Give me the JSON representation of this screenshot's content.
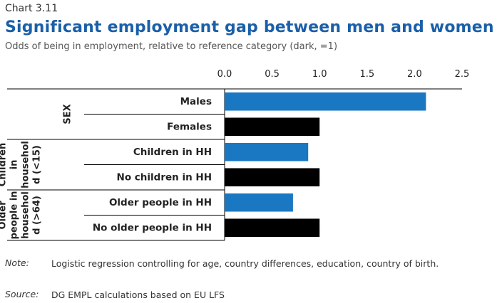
{
  "header": {
    "chart_label": "Chart 3.11",
    "title": "Significant employment gap between men and women",
    "subtitle": "Odds of being in employment, relative to reference category (dark, =1)"
  },
  "footer": {
    "note_label": "Note:",
    "note_text": "Logistic regression controlling for age, country differences, education, country of birth.",
    "source_label": "Source:",
    "source_text": "DG EMPL calculations based on EU LFS"
  },
  "chart_data": {
    "type": "bar",
    "orientation": "horizontal",
    "xlim": [
      0,
      2.5
    ],
    "xticks": [
      "0.0",
      "0.5",
      "1.0",
      "1.5",
      "2.0",
      "2.5"
    ],
    "xtick_values": [
      0,
      0.5,
      1.0,
      1.5,
      2.0,
      2.5
    ],
    "axis_position": "top",
    "grid": false,
    "groups": [
      {
        "label_lines": [
          "SEX"
        ],
        "categories": [
          "Males",
          "Females"
        ]
      },
      {
        "label_lines": [
          "Children",
          "in",
          "househol",
          "d (<15)"
        ],
        "categories": [
          "Children in HH",
          "No children in HH"
        ]
      },
      {
        "label_lines": [
          "Older",
          "people in",
          "househol",
          "d (>64)"
        ],
        "categories": [
          "Older people in HH",
          "No older people in HH"
        ]
      }
    ],
    "categories": [
      "Males",
      "Females",
      "Children in HH",
      "No children in HH",
      "Older people in HH",
      "No older people in HH"
    ],
    "values": [
      2.12,
      1.0,
      0.88,
      1.0,
      0.72,
      1.0
    ],
    "bar_colors": [
      "#1a78c2",
      "#000000",
      "#1a78c2",
      "#000000",
      "#1a78c2",
      "#000000"
    ],
    "colors": {
      "highlight": "#1a78c2",
      "reference": "#000000",
      "title": "#1a5fa8"
    }
  }
}
